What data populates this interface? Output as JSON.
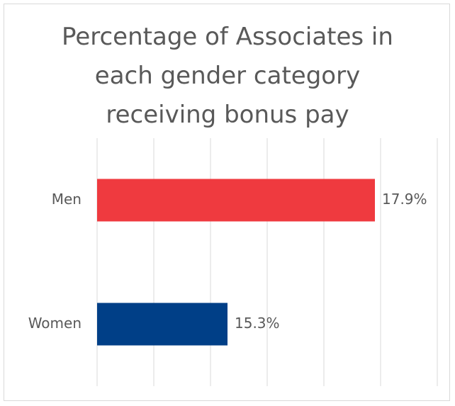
{
  "chart_data": {
    "type": "bar",
    "orientation": "horizontal",
    "title": "Percentage of Associates in each gender category receiving bonus pay",
    "categories": [
      "Men",
      "Women"
    ],
    "values": [
      17.9,
      15.3
    ],
    "value_labels": [
      "17.9%",
      "15.3%"
    ],
    "colors": [
      "#ef3a3f",
      "#003f87"
    ],
    "xlim": [
      13,
      19
    ],
    "xticks": [
      13,
      14,
      15,
      16,
      17,
      18,
      19
    ],
    "grid": true
  }
}
